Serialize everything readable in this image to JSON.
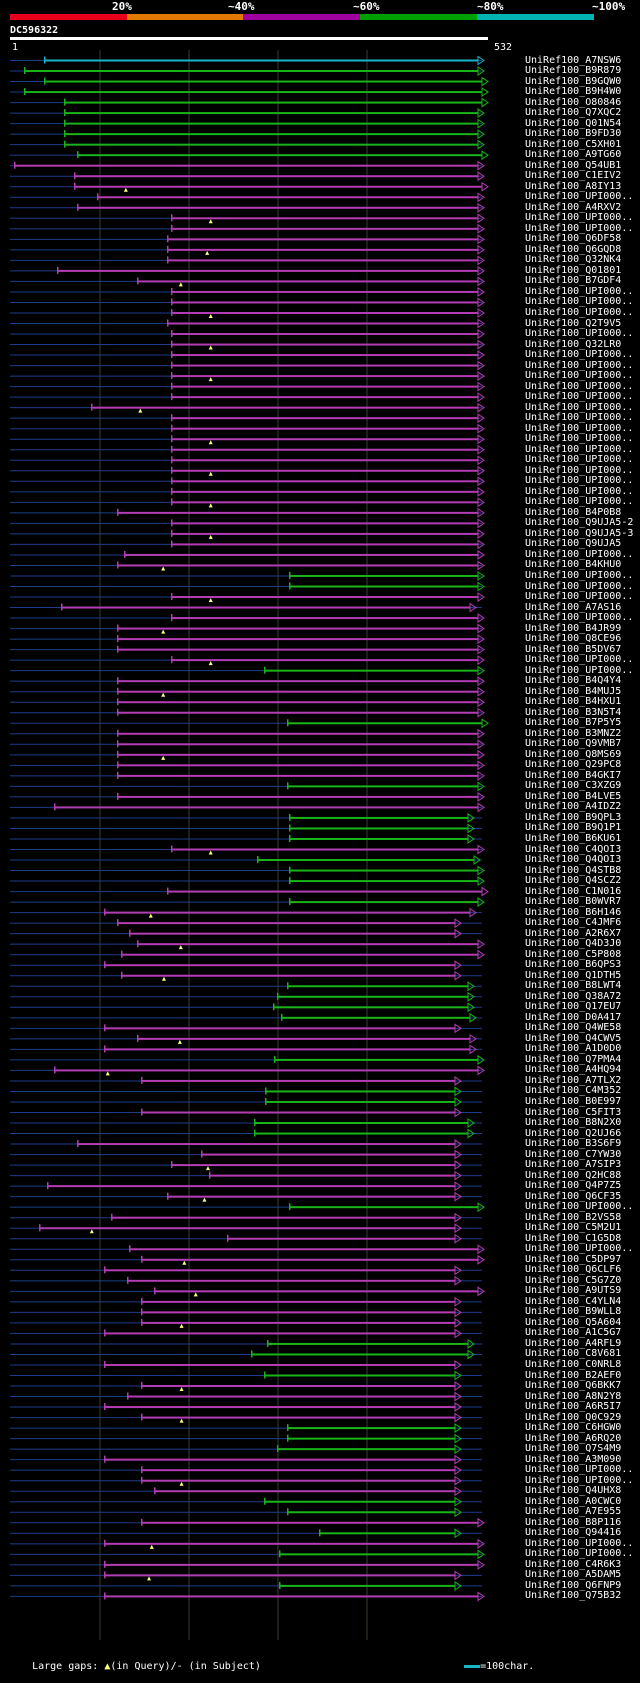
{
  "query_id": "DC596322",
  "query_start": "1",
  "query_end": "532",
  "scale_labels": [
    "20%",
    "~40%",
    "~60%",
    "~80%",
    "~100%"
  ],
  "scale_colors": [
    "#e8001b",
    "#e07a00",
    "#a000a0",
    "#00a000",
    "#00b4b4"
  ],
  "colors": {
    "cyan": "#18b4c8",
    "green": "#18b418",
    "magenta": "#b43cb4",
    "line": "#1e3c8c",
    "gap": "#ffff80"
  },
  "legend": {
    "text": "Large gaps: ",
    "in_query": "(in Query)/",
    "in_subject": "- (in Subject)",
    "scale": "=100char."
  },
  "hits": [
    {
      "acc": "UniRef100_A7NSW6",
      "c": "cyan"
    },
    {
      "acc": "UniRef100_B9R879",
      "c": "green"
    },
    {
      "acc": "UniRef100_B9GQW0",
      "c": "green"
    },
    {
      "acc": "UniRef100_B9H4W0",
      "c": "green"
    },
    {
      "acc": "UniRef100_O80846",
      "c": "green"
    },
    {
      "acc": "UniRef100_Q7XQC2",
      "c": "green"
    },
    {
      "acc": "UniRef100_Q01N54",
      "c": "green"
    },
    {
      "acc": "UniRef100_B9FD30",
      "c": "green"
    },
    {
      "acc": "UniRef100_C5XH01",
      "c": "green"
    },
    {
      "acc": "UniRef100_A9TG60",
      "c": "green"
    },
    {
      "acc": "UniRef100_Q54UB1",
      "c": "magenta"
    },
    {
      "acc": "UniRef100_C1EIV2",
      "c": "magenta"
    },
    {
      "acc": "UniRef100_A8IY13",
      "c": "magenta"
    },
    {
      "acc": "UniRef100_UPI000..",
      "c": "magenta"
    },
    {
      "acc": "UniRef100_A4RXV2",
      "c": "magenta"
    },
    {
      "acc": "UniRef100_UPI000..",
      "c": "magenta"
    },
    {
      "acc": "UniRef100_UPI000..",
      "c": "magenta"
    },
    {
      "acc": "UniRef100_Q6DF58",
      "c": "magenta"
    },
    {
      "acc": "UniRef100_Q6GQD8",
      "c": "magenta"
    },
    {
      "acc": "UniRef100_Q32NK4",
      "c": "magenta"
    },
    {
      "acc": "UniRef100_Q01801",
      "c": "magenta"
    },
    {
      "acc": "UniRef100_B7GDF4",
      "c": "magenta"
    },
    {
      "acc": "UniRef100_UPI000..",
      "c": "magenta"
    },
    {
      "acc": "UniRef100_UPI000..",
      "c": "magenta"
    },
    {
      "acc": "UniRef100_UPI000..",
      "c": "magenta"
    },
    {
      "acc": "UniRef100_Q2T9V5",
      "c": "magenta"
    },
    {
      "acc": "UniRef100_UPI000..",
      "c": "magenta"
    },
    {
      "acc": "UniRef100_Q32LR0",
      "c": "magenta"
    },
    {
      "acc": "UniRef100_UPI000..",
      "c": "magenta"
    },
    {
      "acc": "UniRef100_UPI000..",
      "c": "magenta"
    },
    {
      "acc": "UniRef100_UPI000..",
      "c": "magenta"
    },
    {
      "acc": "UniRef100_UPI000..",
      "c": "magenta"
    },
    {
      "acc": "UniRef100_UPI000..",
      "c": "magenta"
    },
    {
      "acc": "UniRef100_UPI000..",
      "c": "magenta"
    },
    {
      "acc": "UniRef100_UPI000..",
      "c": "magenta"
    },
    {
      "acc": "UniRef100_UPI000..",
      "c": "magenta"
    },
    {
      "acc": "UniRef100_UPI000..",
      "c": "magenta"
    },
    {
      "acc": "UniRef100_UPI000..",
      "c": "magenta"
    },
    {
      "acc": "UniRef100_UPI000..",
      "c": "magenta"
    },
    {
      "acc": "UniRef100_UPI000..",
      "c": "magenta"
    },
    {
      "acc": "UniRef100_UPI000..",
      "c": "magenta"
    },
    {
      "acc": "UniRef100_UPI000..",
      "c": "magenta"
    },
    {
      "acc": "UniRef100_UPI000..",
      "c": "magenta"
    },
    {
      "acc": "UniRef100_B4P0B8",
      "c": "magenta"
    },
    {
      "acc": "UniRef100_Q9UJA5-2",
      "c": "magenta"
    },
    {
      "acc": "UniRef100_Q9UJA5-3",
      "c": "magenta"
    },
    {
      "acc": "UniRef100_Q9UJA5",
      "c": "magenta"
    },
    {
      "acc": "UniRef100_UPI000..",
      "c": "magenta"
    },
    {
      "acc": "UniRef100_B4KHU0",
      "c": "magenta"
    },
    {
      "acc": "UniRef100_UPI000..",
      "c": "green"
    },
    {
      "acc": "UniRef100_UPI000..",
      "c": "green"
    },
    {
      "acc": "UniRef100_UPI000..",
      "c": "magenta"
    },
    {
      "acc": "UniRef100_A7AS16",
      "c": "magenta"
    },
    {
      "acc": "UniRef100_UPI000..",
      "c": "magenta"
    },
    {
      "acc": "UniRef100_B4JR99",
      "c": "magenta"
    },
    {
      "acc": "UniRef100_Q8CE96",
      "c": "magenta"
    },
    {
      "acc": "UniRef100_B5DV67",
      "c": "magenta"
    },
    {
      "acc": "UniRef100_UPI000..",
      "c": "magenta"
    },
    {
      "acc": "UniRef100_UPI000..",
      "c": "green"
    },
    {
      "acc": "UniRef100_B4Q4Y4",
      "c": "magenta"
    },
    {
      "acc": "UniRef100_B4MUJ5",
      "c": "magenta"
    },
    {
      "acc": "UniRef100_B4HXU1",
      "c": "magenta"
    },
    {
      "acc": "UniRef100_B3N5T4",
      "c": "magenta"
    },
    {
      "acc": "UniRef100_B7P5Y5",
      "c": "green"
    },
    {
      "acc": "UniRef100_B3MNZ2",
      "c": "magenta"
    },
    {
      "acc": "UniRef100_Q9VMB7",
      "c": "magenta"
    },
    {
      "acc": "UniRef100_Q8MS69",
      "c": "magenta"
    },
    {
      "acc": "UniRef100_Q29PC8",
      "c": "magenta"
    },
    {
      "acc": "UniRef100_B4GKI7",
      "c": "magenta"
    },
    {
      "acc": "UniRef100_C3XZG9",
      "c": "green"
    },
    {
      "acc": "UniRef100_B4LVE5",
      "c": "magenta"
    },
    {
      "acc": "UniRef100_A4IDZ2",
      "c": "magenta"
    },
    {
      "acc": "UniRef100_B9QPL3",
      "c": "green"
    },
    {
      "acc": "UniRef100_B9Q1P1",
      "c": "green"
    },
    {
      "acc": "UniRef100_B6KU61",
      "c": "green"
    },
    {
      "acc": "UniRef100_C4QOI3",
      "c": "magenta"
    },
    {
      "acc": "UniRef100_Q4QOI3",
      "c": "green"
    },
    {
      "acc": "UniRef100_Q4STB8",
      "c": "green"
    },
    {
      "acc": "UniRef100_Q4SCZ2",
      "c": "green"
    },
    {
      "acc": "UniRef100_C1N016",
      "c": "magenta"
    },
    {
      "acc": "UniRef100_B0WVR7",
      "c": "green"
    },
    {
      "acc": "UniRef100_B6H146",
      "c": "magenta"
    },
    {
      "acc": "UniRef100_C4JMF6",
      "c": "magenta"
    },
    {
      "acc": "UniRef100_A2R6X7",
      "c": "magenta"
    },
    {
      "acc": "UniRef100_Q4D3J0",
      "c": "magenta"
    },
    {
      "acc": "UniRef100_C5P808",
      "c": "magenta"
    },
    {
      "acc": "UniRef100_B6QPS3",
      "c": "magenta"
    },
    {
      "acc": "UniRef100_Q1DTH5",
      "c": "magenta"
    },
    {
      "acc": "UniRef100_B8LWT4",
      "c": "green"
    },
    {
      "acc": "UniRef100_Q38A72",
      "c": "green"
    },
    {
      "acc": "UniRef100_Q17EU7",
      "c": "green"
    },
    {
      "acc": "UniRef100_D0A417",
      "c": "green"
    },
    {
      "acc": "UniRef100_Q4WE58",
      "c": "magenta"
    },
    {
      "acc": "UniRef100_Q4CWV5",
      "c": "magenta"
    },
    {
      "acc": "UniRef100_A1D0D0",
      "c": "magenta"
    },
    {
      "acc": "UniRef100_Q7PMA4",
      "c": "green"
    },
    {
      "acc": "UniRef100_A4HQ94",
      "c": "magenta"
    },
    {
      "acc": "UniRef100_A7TLX2",
      "c": "magenta"
    },
    {
      "acc": "UniRef100_C4M352",
      "c": "green"
    },
    {
      "acc": "UniRef100_B0E997",
      "c": "green"
    },
    {
      "acc": "UniRef100_C5FIT3",
      "c": "magenta"
    },
    {
      "acc": "UniRef100_B8N2X0",
      "c": "green"
    },
    {
      "acc": "UniRef100_Q2UJ66",
      "c": "green"
    },
    {
      "acc": "UniRef100_B3S6F9",
      "c": "magenta"
    },
    {
      "acc": "UniRef100_C7YW30",
      "c": "magenta"
    },
    {
      "acc": "UniRef100_A7SIP3",
      "c": "magenta"
    },
    {
      "acc": "UniRef100_Q2HC88",
      "c": "magenta"
    },
    {
      "acc": "UniRef100_Q4P7Z5",
      "c": "magenta"
    },
    {
      "acc": "UniRef100_Q6CF35",
      "c": "magenta"
    },
    {
      "acc": "UniRef100_UPI000..",
      "c": "green"
    },
    {
      "acc": "UniRef100_B2VS58",
      "c": "magenta"
    },
    {
      "acc": "UniRef100_C5M2U1",
      "c": "magenta"
    },
    {
      "acc": "UniRef100_C1G5D8",
      "c": "magenta"
    },
    {
      "acc": "UniRef100_UPI000..",
      "c": "magenta"
    },
    {
      "acc": "UniRef100_C5DP97",
      "c": "magenta"
    },
    {
      "acc": "UniRef100_Q6CLF6",
      "c": "magenta"
    },
    {
      "acc": "UniRef100_C5G7Z0",
      "c": "magenta"
    },
    {
      "acc": "UniRef100_A9UTS9",
      "c": "magenta"
    },
    {
      "acc": "UniRef100_C4YLN4",
      "c": "magenta"
    },
    {
      "acc": "UniRef100_B9WLL8",
      "c": "magenta"
    },
    {
      "acc": "UniRef100_Q5A604",
      "c": "magenta"
    },
    {
      "acc": "UniRef100_A1C5G7",
      "c": "magenta"
    },
    {
      "acc": "UniRef100_A4RFL9",
      "c": "green"
    },
    {
      "acc": "UniRef100_C8V681",
      "c": "green"
    },
    {
      "acc": "UniRef100_C0NRL8",
      "c": "magenta"
    },
    {
      "acc": "UniRef100_B2AEF0",
      "c": "green"
    },
    {
      "acc": "UniRef100_Q6BKK7",
      "c": "magenta"
    },
    {
      "acc": "UniRef100_A8N2Y8",
      "c": "magenta"
    },
    {
      "acc": "UniRef100_A6R5I7",
      "c": "magenta"
    },
    {
      "acc": "UniRef100_Q0C929",
      "c": "magenta"
    },
    {
      "acc": "UniRef100_C6HGW0",
      "c": "green"
    },
    {
      "acc": "UniRef100_A6RQ20",
      "c": "green"
    },
    {
      "acc": "UniRef100_Q7S4M9",
      "c": "green"
    },
    {
      "acc": "UniRef100_A3M090",
      "c": "magenta"
    },
    {
      "acc": "UniRef100_UPI000..",
      "c": "magenta"
    },
    {
      "acc": "UniRef100_UPI000..",
      "c": "magenta"
    },
    {
      "acc": "UniRef100_Q4UHX8",
      "c": "magenta"
    },
    {
      "acc": "UniRef100_A0CWC0",
      "c": "green"
    },
    {
      "acc": "UniRef100_A7E955",
      "c": "green"
    },
    {
      "acc": "UniRef100_B8P116",
      "c": "magenta"
    },
    {
      "acc": "UniRef100_Q94416",
      "c": "green"
    },
    {
      "acc": "UniRef100_UPI000..",
      "c": "magenta"
    },
    {
      "acc": "UniRef100_UPI000..",
      "c": "green"
    },
    {
      "acc": "UniRef100_C4R6K3",
      "c": "magenta"
    },
    {
      "acc": "UniRef100_A5DAM5",
      "c": "magenta"
    },
    {
      "acc": "UniRef100_Q6FNP9",
      "c": "green"
    },
    {
      "acc": "UniRef100_Q75B32",
      "c": "magenta"
    }
  ]
}
